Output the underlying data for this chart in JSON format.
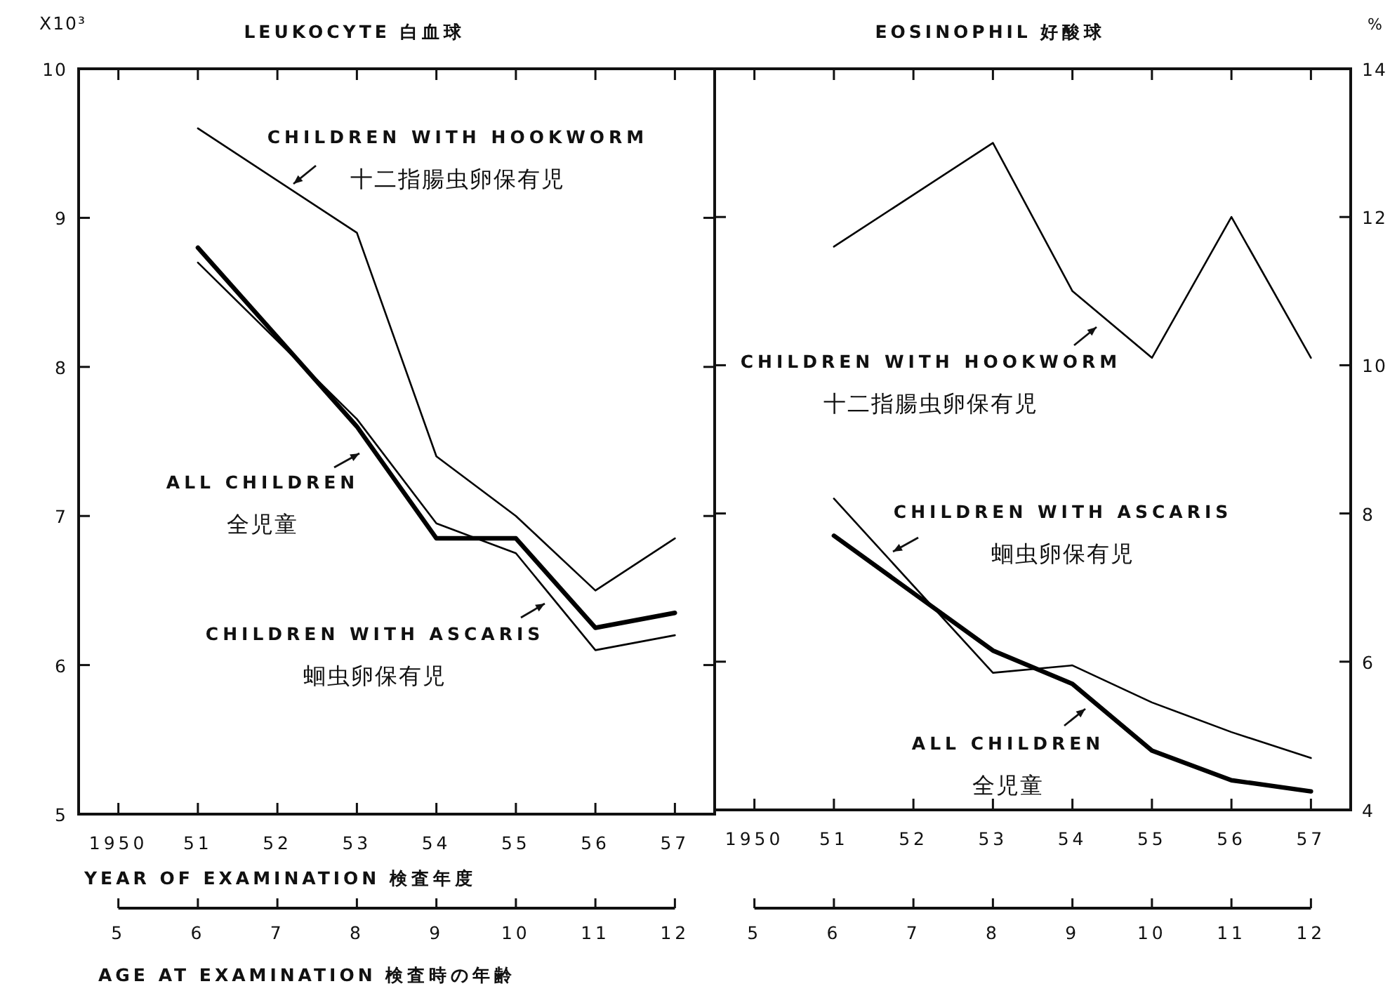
{
  "chart_data": [
    {
      "type": "line",
      "title": "LEUKOCYTE 白血球",
      "ylabel": "X10³",
      "xlabel": "YEAR OF EXAMINATION 検査年度",
      "x2label": "AGE AT EXAMINATION 検査時の年齢",
      "xlim": [
        1949.5,
        1957.5
      ],
      "xticks": [
        {
          "value": 1950,
          "label": "1950"
        },
        {
          "value": 1951,
          "label": "51"
        },
        {
          "value": 1952,
          "label": "52"
        },
        {
          "value": 1953,
          "label": "53"
        },
        {
          "value": 1954,
          "label": "54"
        },
        {
          "value": 1955,
          "label": "55"
        },
        {
          "value": 1956,
          "label": "56"
        },
        {
          "value": 1957,
          "label": "57"
        }
      ],
      "x2lim": [
        4.5,
        12.5
      ],
      "x2ticks": [
        5,
        6,
        7,
        8,
        9,
        10,
        11,
        12
      ],
      "ylim": [
        5,
        10
      ],
      "yticks": [
        5,
        6,
        7,
        8,
        9,
        10
      ],
      "series": [
        {
          "name": "CHILDREN WITH HOOKWORM\n十二指腸虫卵保有児",
          "color": "#000000",
          "x": [
            1951,
            1953,
            1954,
            1955,
            1956,
            1957
          ],
          "values": [
            9.6,
            8.9,
            7.4,
            7.0,
            6.5,
            6.85
          ]
        },
        {
          "name": "ALL CHILDREN\n全児童",
          "color": "#000000",
          "x": [
            1951,
            1953,
            1954,
            1955,
            1956,
            1957
          ],
          "values": [
            8.8,
            7.6,
            6.85,
            6.85,
            6.25,
            6.35
          ]
        },
        {
          "name": "CHILDREN WITH ASCARIS\n蛔虫卵保有児",
          "color": "#000000",
          "x": [
            1951,
            1953,
            1954,
            1955,
            1956,
            1957
          ],
          "values": [
            8.7,
            7.65,
            6.95,
            6.75,
            6.1,
            6.2
          ]
        }
      ]
    },
    {
      "type": "line",
      "title": "EOSINOPHIL 好酸球",
      "y2label": "%",
      "xlim": [
        1949.5,
        1957.5
      ],
      "xticks": [
        {
          "value": 1950,
          "label": "1950"
        },
        {
          "value": 1951,
          "label": "51"
        },
        {
          "value": 1952,
          "label": "52"
        },
        {
          "value": 1953,
          "label": "53"
        },
        {
          "value": 1954,
          "label": "54"
        },
        {
          "value": 1955,
          "label": "55"
        },
        {
          "value": 1956,
          "label": "56"
        },
        {
          "value": 1957,
          "label": "57"
        }
      ],
      "x2lim": [
        4.5,
        12.5
      ],
      "x2ticks": [
        5,
        6,
        7,
        8,
        9,
        10,
        11,
        12
      ],
      "y2lim": [
        4,
        14
      ],
      "y2ticks": [
        4,
        6,
        8,
        10,
        12,
        14
      ],
      "series": [
        {
          "name": "CHILDREN WITH HOOKWORM\n十二指腸虫卵保有児",
          "color": "#000000",
          "axis": "y2",
          "x": [
            1951,
            1953,
            1954,
            1955,
            1956,
            1957
          ],
          "values": [
            11.6,
            13.0,
            11.0,
            10.1,
            12.0,
            10.1
          ]
        },
        {
          "name": "ALL CHILDREN\n全児童",
          "color": "#000000",
          "axis": "y2",
          "x": [
            1951,
            1953,
            1954,
            1955,
            1956,
            1957
          ],
          "values": [
            7.7,
            6.15,
            5.7,
            4.8,
            4.4,
            4.25
          ]
        },
        {
          "name": "CHILDREN WITH ASCARIS\n蛔虫卵保有児",
          "color": "#000000",
          "axis": "y2",
          "x": [
            1951,
            1953,
            1954,
            1955,
            1956,
            1957
          ],
          "values": [
            8.2,
            5.85,
            5.95,
            5.45,
            5.05,
            4.7
          ]
        }
      ]
    }
  ]
}
